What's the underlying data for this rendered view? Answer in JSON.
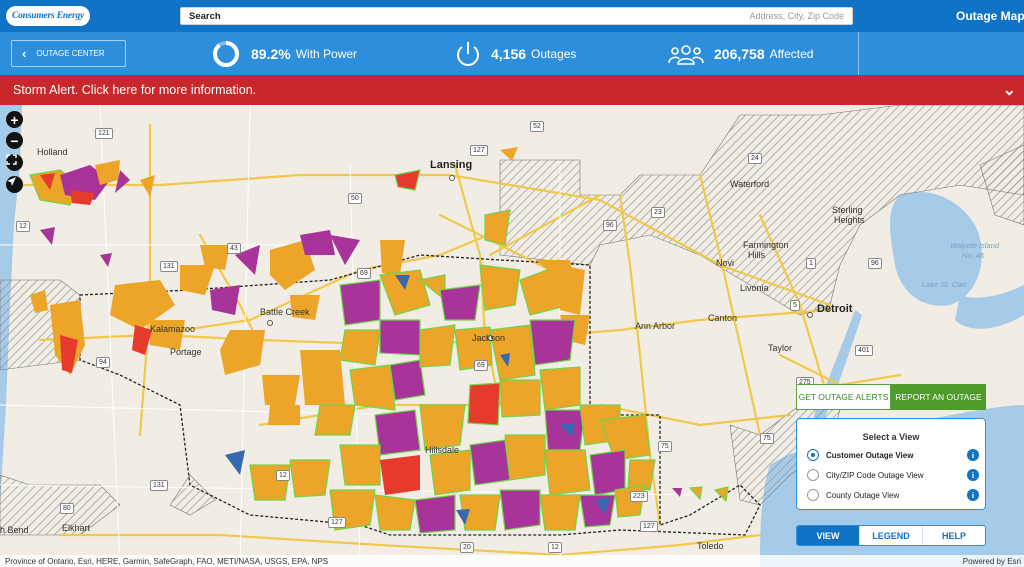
{
  "header": {
    "logo_text": "Consumers Energy",
    "search_label": "Search",
    "search_placeholder": "Address, City, Zip Code",
    "app_title": "Outage Map"
  },
  "stats": {
    "back_button": "OUTAGE CENTER",
    "power_pct": "89.2%",
    "power_label": "With Power",
    "power_fraction": 0.892,
    "outages": "4,156",
    "outages_label": "Outages",
    "affected": "206,758",
    "affected_label": "Affected"
  },
  "alert": {
    "text": "Storm Alert. Click here for more information."
  },
  "map": {
    "zoom_in": "+",
    "zoom_out": "−",
    "labels": {
      "holland": "Holland",
      "lansing": "Lansing",
      "waterford": "Waterford",
      "sterling": "Sterling",
      "heights": "Heights",
      "farmington": "Farmington",
      "hills": "Hills",
      "novi": "Novi",
      "livonia": "Livonia",
      "canton": "Canton",
      "detroit": "Detroit",
      "ann_arbor": "Ann Arbor",
      "taylor": "Taylor",
      "battle_creek": "Battle Creek",
      "kalamazoo": "Kalamazoo",
      "portage": "Portage",
      "jackson": "Jackson",
      "hillsdale": "Hillsdale",
      "elkhart": "Elkhart",
      "toledo": "Toledo",
      "bend": "h Bend",
      "lake_st_clair": "Lake St. Clair",
      "walpole": "Walpole Island",
      "walpole_no": "No. 46"
    },
    "shields": [
      "121",
      "52",
      "127",
      "69",
      "131",
      "50",
      "23",
      "43",
      "94",
      "96",
      "131",
      "75",
      "275",
      "401",
      "12",
      "223",
      "127",
      "20",
      "80",
      "12",
      "127",
      "12",
      "75",
      "96",
      "24",
      "69",
      "1",
      "5"
    ]
  },
  "panel": {
    "get_alerts": "GET OUTAGE ALERTS",
    "report": "REPORT AN OUTAGE",
    "select_title": "Select a View",
    "options": [
      "Customer Outage View",
      "City/ZIP Code Outage View",
      "County Outage View"
    ],
    "selected_index": 0,
    "info_glyph": "i",
    "tabs": [
      "VIEW",
      "LEGEND",
      "HELP"
    ],
    "active_tab": 0
  },
  "attribution": {
    "left": "Province of Ontario, Esri, HERE, Garmin, SafeGraph, FAO, METI/NASA, USGS, EPA, NPS",
    "right": "Powered by Esri"
  },
  "colors": {
    "brand_blue": "#1173c5",
    "stats_blue": "#2d8fdc",
    "alert_red": "#c8282b",
    "outage_orange": "#eda529",
    "outage_purple": "#a83399",
    "outage_red": "#e53a2c",
    "outage_blue": "#3869b0",
    "outline_green": "#6fd44a",
    "water": "#a6cbe8",
    "hatch": "#8a8a8a"
  }
}
